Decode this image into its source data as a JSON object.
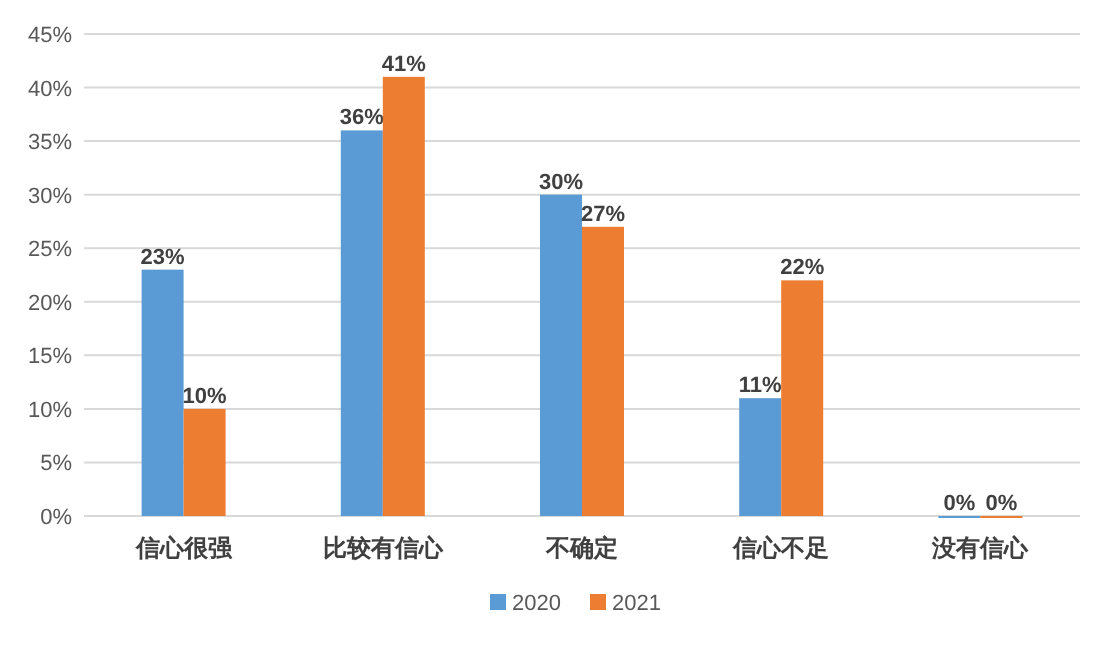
{
  "chart_data": {
    "type": "bar",
    "categories": [
      "信心很强",
      "比较有信心",
      "不确定",
      "信心不足",
      "没有信心"
    ],
    "series": [
      {
        "name": "2020",
        "color": "#5b9bd5",
        "values": [
          23,
          36,
          30,
          11,
          0
        ],
        "value_labels": [
          "23%",
          "36%",
          "30%",
          "11%",
          "0%"
        ]
      },
      {
        "name": "2021",
        "color": "#ed7d31",
        "values": [
          10,
          41,
          27,
          22,
          0
        ],
        "value_labels": [
          "10%",
          "41%",
          "27%",
          "22%",
          "0%"
        ]
      }
    ],
    "ylim": [
      0,
      45
    ],
    "yticks": [
      {
        "value": 0,
        "label": "0%"
      },
      {
        "value": 5,
        "label": "5%"
      },
      {
        "value": 10,
        "label": "10%"
      },
      {
        "value": 15,
        "label": "15%"
      },
      {
        "value": 20,
        "label": "20%"
      },
      {
        "value": 25,
        "label": "25%"
      },
      {
        "value": 30,
        "label": "30%"
      },
      {
        "value": 35,
        "label": "35%"
      },
      {
        "value": 40,
        "label": "40%"
      },
      {
        "value": 45,
        "label": "45%"
      }
    ],
    "grid": "y",
    "legend": "bottom"
  }
}
